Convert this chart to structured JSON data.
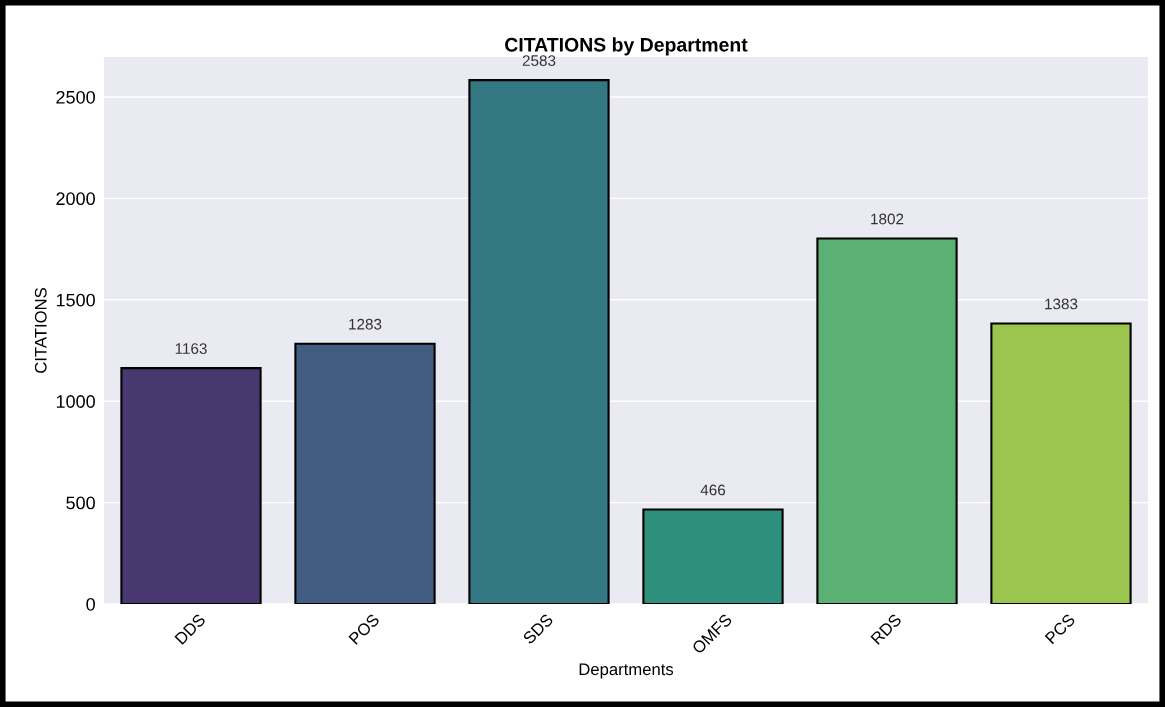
{
  "chart_data": {
    "type": "bar",
    "title": "CITATIONS by Department",
    "xlabel": "Departments",
    "ylabel": "CITATIONS",
    "categories": [
      "DDS",
      "POS",
      "SDS",
      "OMFS",
      "RDS",
      "PCS"
    ],
    "values": [
      1163,
      1283,
      2583,
      466,
      1802,
      1383
    ],
    "colors": [
      "#48386f",
      "#415d82",
      "#337882",
      "#2e8f7c",
      "#5bb073",
      "#9bc54f"
    ],
    "ylim": [
      0,
      2697
    ],
    "yticks": [
      0,
      500,
      1000,
      1500,
      2000,
      2500
    ],
    "grid": "y",
    "data_labels": true
  }
}
